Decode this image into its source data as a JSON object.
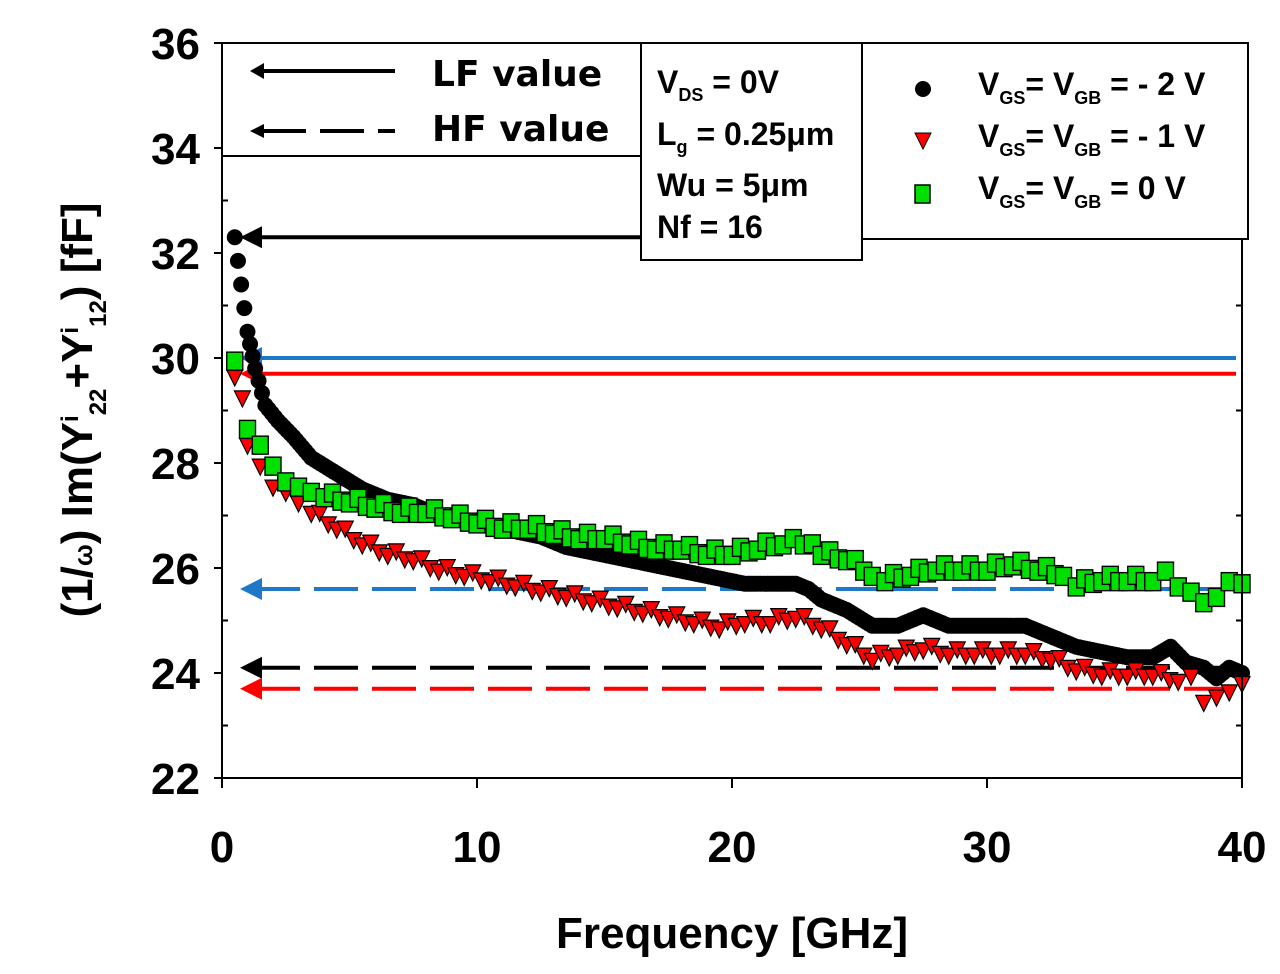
{
  "chart_data": {
    "type": "scatter",
    "title": "",
    "xlabel": "Frequency [GHz]",
    "ylabel": "(1/ω) Im(Yⁱ₂₂+Yⁱ₁₂) [fF]",
    "ylabel_parts": {
      "prefix": "(1/",
      "omega": "ω",
      "mid": ") Im(Y",
      "sup1": "i",
      "sub1": "22",
      "plus": "+Y",
      "sup2": "i",
      "sub2": "12",
      "suffix": ") [fF]"
    },
    "xlim": [
      0,
      40
    ],
    "ylim": [
      22,
      36
    ],
    "x_ticks": [
      0,
      10,
      20,
      30,
      40
    ],
    "x_tick_labels": [
      "0",
      "10",
      "20",
      "30",
      "40"
    ],
    "y_ticks": [
      22,
      24,
      26,
      28,
      30,
      32,
      34,
      36
    ],
    "y_tick_labels": [
      "22",
      "24",
      "26",
      "28",
      "30",
      "32",
      "34",
      "36"
    ],
    "grid": false,
    "legend_placement": "top-right",
    "line_style_legend": {
      "lf_label": "LF value",
      "hf_label": "HF value"
    },
    "annotation": {
      "vds": {
        "main": "V",
        "sub": "DS",
        "rest": " = 0V"
      },
      "lg": {
        "main": "L",
        "sub": "g",
        "rest": " = 0.25μm"
      },
      "wu": "Wu = 5μm",
      "nf": "Nf = 16"
    },
    "series": [
      {
        "name": "VGS = VGB = -2 V",
        "legend": {
          "v1": "V",
          "s1": "GS",
          "eq": "= V",
          "s2": "GB",
          "rest": " = - 2 V"
        },
        "marker": "circle",
        "color": "#000000",
        "lf_value": 32.3,
        "hf_value": 24.1,
        "ref_color": "#000000",
        "points": [
          [
            0.5,
            32.3
          ],
          [
            1.0,
            30.5
          ],
          [
            1.3,
            29.8
          ],
          [
            1.7,
            29.1
          ],
          [
            2.2,
            28.8
          ],
          [
            2.8,
            28.5
          ],
          [
            3.5,
            28.1
          ],
          [
            4.5,
            27.8
          ],
          [
            5.5,
            27.5
          ],
          [
            6.5,
            27.3
          ],
          [
            7.5,
            27.2
          ],
          [
            8.5,
            27.0
          ],
          [
            9.5,
            26.9
          ],
          [
            10.5,
            26.8
          ],
          [
            11.5,
            26.7
          ],
          [
            12.5,
            26.6
          ],
          [
            13.5,
            26.4
          ],
          [
            14.5,
            26.3
          ],
          [
            15.5,
            26.2
          ],
          [
            16.5,
            26.1
          ],
          [
            17.5,
            26.0
          ],
          [
            18.5,
            25.9
          ],
          [
            19.5,
            25.8
          ],
          [
            20.5,
            25.7
          ],
          [
            21.5,
            25.7
          ],
          [
            22.5,
            25.7
          ],
          [
            23.0,
            25.6
          ],
          [
            23.5,
            25.4
          ],
          [
            24.5,
            25.2
          ],
          [
            25.5,
            24.9
          ],
          [
            26.5,
            24.9
          ],
          [
            27.5,
            25.1
          ],
          [
            28.5,
            24.9
          ],
          [
            29.5,
            24.9
          ],
          [
            30.5,
            24.9
          ],
          [
            31.5,
            24.9
          ],
          [
            32.5,
            24.7
          ],
          [
            33.5,
            24.5
          ],
          [
            34.5,
            24.4
          ],
          [
            35.5,
            24.3
          ],
          [
            36.5,
            24.3
          ],
          [
            37.2,
            24.5
          ],
          [
            37.8,
            24.2
          ],
          [
            38.5,
            24.1
          ],
          [
            39.0,
            23.9
          ],
          [
            39.5,
            24.1
          ],
          [
            40.0,
            24.0
          ]
        ]
      },
      {
        "name": "VGS = VGB = -1 V",
        "legend": {
          "v1": "V",
          "s1": "GS",
          "eq": "= V",
          "s2": "GB",
          "rest": " = - 1 V"
        },
        "marker": "triangle-down",
        "color": "#ff0000",
        "lf_value": 29.7,
        "hf_value": 23.7,
        "ref_color": "#ff0000",
        "points": [
          [
            0.5,
            29.7
          ],
          [
            0.8,
            29.3
          ],
          [
            1.0,
            28.4
          ],
          [
            1.5,
            28.0
          ],
          [
            2.0,
            27.6
          ],
          [
            2.5,
            27.5
          ],
          [
            3.0,
            27.3
          ],
          [
            3.5,
            27.1
          ],
          [
            4.5,
            26.8
          ],
          [
            5.5,
            26.5
          ],
          [
            6.5,
            26.3
          ],
          [
            7.5,
            26.2
          ],
          [
            8.5,
            26.0
          ],
          [
            9.5,
            25.9
          ],
          [
            10.5,
            25.8
          ],
          [
            11.5,
            25.7
          ],
          [
            12.5,
            25.6
          ],
          [
            13.5,
            25.5
          ],
          [
            14.5,
            25.4
          ],
          [
            15.5,
            25.3
          ],
          [
            16.5,
            25.2
          ],
          [
            17.5,
            25.1
          ],
          [
            18.5,
            25.0
          ],
          [
            19.5,
            24.9
          ],
          [
            20.5,
            25.0
          ],
          [
            21.5,
            25.0
          ],
          [
            22.5,
            25.1
          ],
          [
            23.5,
            24.9
          ],
          [
            24.5,
            24.6
          ],
          [
            25.5,
            24.3
          ],
          [
            26.5,
            24.4
          ],
          [
            27.5,
            24.5
          ],
          [
            28.5,
            24.4
          ],
          [
            29.5,
            24.4
          ],
          [
            30.5,
            24.4
          ],
          [
            31.5,
            24.4
          ],
          [
            32.5,
            24.3
          ],
          [
            33.5,
            24.1
          ],
          [
            34.5,
            24.0
          ],
          [
            35.5,
            24.0
          ],
          [
            36.5,
            24.0
          ],
          [
            37.5,
            23.9
          ],
          [
            38.0,
            24.0
          ],
          [
            38.5,
            23.5
          ],
          [
            39.0,
            23.6
          ],
          [
            39.5,
            23.7
          ],
          [
            40.0,
            23.8
          ]
        ]
      },
      {
        "name": "VGS = VGB = 0 V",
        "legend": {
          "v1": "V",
          "s1": "GS",
          "eq": "= V",
          "s2": "GB",
          "rest": " = 0 V"
        },
        "marker": "square",
        "color": "#00e000",
        "lf_value": 30.0,
        "hf_value": 25.6,
        "ref_color": "#1f77c8",
        "points": [
          [
            0.5,
            30.0
          ],
          [
            1.0,
            28.7
          ],
          [
            1.5,
            28.4
          ],
          [
            2.0,
            28.0
          ],
          [
            2.5,
            27.7
          ],
          [
            3.0,
            27.6
          ],
          [
            3.5,
            27.5
          ],
          [
            4.0,
            27.4
          ],
          [
            5.0,
            27.3
          ],
          [
            6.0,
            27.2
          ],
          [
            7.0,
            27.1
          ],
          [
            8.0,
            27.1
          ],
          [
            9.0,
            27.0
          ],
          [
            10.0,
            26.9
          ],
          [
            11.0,
            26.8
          ],
          [
            12.0,
            26.8
          ],
          [
            13.0,
            26.7
          ],
          [
            14.0,
            26.6
          ],
          [
            15.0,
            26.6
          ],
          [
            16.0,
            26.5
          ],
          [
            17.0,
            26.4
          ],
          [
            18.0,
            26.4
          ],
          [
            19.0,
            26.3
          ],
          [
            20.0,
            26.3
          ],
          [
            21.0,
            26.4
          ],
          [
            22.0,
            26.5
          ],
          [
            22.8,
            26.5
          ],
          [
            23.5,
            26.3
          ],
          [
            24.5,
            26.2
          ],
          [
            25.5,
            25.9
          ],
          [
            26.0,
            25.8
          ],
          [
            27.0,
            25.9
          ],
          [
            28.0,
            26.0
          ],
          [
            29.0,
            26.0
          ],
          [
            30.0,
            26.0
          ],
          [
            31.0,
            26.1
          ],
          [
            32.0,
            26.0
          ],
          [
            33.0,
            25.9
          ],
          [
            33.5,
            25.7
          ],
          [
            34.5,
            25.8
          ],
          [
            35.5,
            25.8
          ],
          [
            36.5,
            25.8
          ],
          [
            37.0,
            26.0
          ],
          [
            37.5,
            25.7
          ],
          [
            38.0,
            25.6
          ],
          [
            38.5,
            25.4
          ],
          [
            39.0,
            25.5
          ],
          [
            39.5,
            25.8
          ],
          [
            40.0,
            25.7
          ]
        ]
      }
    ]
  }
}
